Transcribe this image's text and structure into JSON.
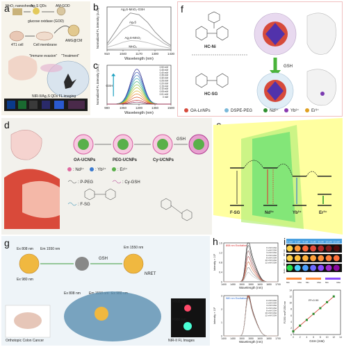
{
  "panels": {
    "a": {
      "label": "a",
      "steps": [
        "MnO₂ nanosheets",
        "Ag₂S QDs",
        "AM-GOD",
        "glucose oxidase (GOD)",
        "4T1 cell",
        "Cell membrane",
        "AMG@CM"
      ],
      "callouts": [
        "\"Immune evasion\"",
        "\"Treatment\""
      ],
      "strip_caption": "NIR-II/Ag₂S QDs FL imaging"
    },
    "b": {
      "label": "b",
      "chart_data": {
        "type": "line",
        "xlabel": "Wavelength (nm)",
        "ylabel": "Normalized FL intensity (a.u.)",
        "xlim": [
          910,
          1430
        ],
        "ylim": [
          0,
          1
        ],
        "xticks": [
          910,
          1040,
          1170,
          1300,
          1430
        ],
        "series": [
          {
            "name": "Ag₂S-MnO₂-GSH",
            "x": [
              910,
              980,
              1040,
              1100,
              1170,
              1240,
              1300,
              1370,
              1430
            ],
            "y": [
              0.14,
              0.44,
              0.7,
              0.86,
              0.82,
              0.64,
              0.42,
              0.22,
              0.1
            ]
          },
          {
            "name": "Ag₂S",
            "x": [
              910,
              980,
              1040,
              1100,
              1170,
              1240,
              1300,
              1370,
              1430
            ],
            "y": [
              0.1,
              0.3,
              0.48,
              0.58,
              0.55,
              0.44,
              0.3,
              0.16,
              0.07
            ]
          },
          {
            "name": "Ag₂S-MnO₂",
            "x": [
              910,
              980,
              1040,
              1100,
              1170,
              1240,
              1300,
              1370,
              1430
            ],
            "y": [
              0.06,
              0.12,
              0.18,
              0.22,
              0.21,
              0.17,
              0.12,
              0.07,
              0.04
            ]
          },
          {
            "name": "MnO₂",
            "x": [
              910,
              980,
              1040,
              1100,
              1170,
              1240,
              1300,
              1370,
              1430
            ],
            "y": [
              0.02,
              0.03,
              0.04,
              0.045,
              0.04,
              0.035,
              0.03,
              0.02,
              0.015
            ]
          }
        ]
      }
    },
    "c": {
      "label": "c",
      "arrow_label": "GSH",
      "chart_data": {
        "type": "line",
        "xlabel": "Wavelength (nm)",
        "ylabel": "Normalized FL intensity (a.u.)",
        "xlim": [
          900,
          1500
        ],
        "ylim": [
          0,
          1.0
        ],
        "xticks": [
          900,
          1050,
          1200,
          1350,
          1500
        ],
        "peak_x": 1180,
        "series": [
          {
            "name": "0.50 mM",
            "peak": 0.9
          },
          {
            "name": "0.45 mM",
            "peak": 0.82
          },
          {
            "name": "0.40 mM",
            "peak": 0.74
          },
          {
            "name": "0.35 mM",
            "peak": 0.66
          },
          {
            "name": "0.30 mM",
            "peak": 0.58
          },
          {
            "name": "0.25 mM",
            "peak": 0.5
          },
          {
            "name": "0.20 mM",
            "peak": 0.42
          },
          {
            "name": "0.15 mM",
            "peak": 0.34
          },
          {
            "name": "0.10 mM",
            "peak": 0.26
          },
          {
            "name": "0.05 mM",
            "peak": 0.18
          },
          {
            "name": "0.01 mM",
            "peak": 0.1
          },
          {
            "name": "0 mM",
            "peak": 0.05
          }
        ],
        "colors": [
          "#2b2b8c",
          "#3a55b0",
          "#3f7fc2",
          "#2fa3b8",
          "#3bb07a",
          "#7cbf3c",
          "#b9c230",
          "#e0b12b",
          "#e6862a",
          "#dc5a2a",
          "#c23b3b",
          "#8a2d5c"
        ]
      }
    },
    "d": {
      "label": "d",
      "stages": [
        "OA-UCNPs",
        "PEG-UCNPs",
        "Cy-UCNPs"
      ],
      "arrow_label": "GSH",
      "legend": [
        ": Nd³⁺",
        ": Yb³⁺",
        ": Er³⁺",
        ": P-PEG",
        ": Cy-GSH",
        ": F-SG"
      ]
    },
    "e": {
      "label": "e",
      "levels": [
        "F-SG",
        "Nd³⁺",
        "Yb³⁺",
        "Er³⁺"
      ]
    },
    "f": {
      "label": "f",
      "molecules": [
        "HC-Ni",
        "HC-SG"
      ],
      "arrow_label": "GSH",
      "legend": [
        "OA-LnNPs",
        "DSPE-PEG",
        "Nd³⁺",
        "Yb³⁺",
        "Er³⁺"
      ]
    },
    "g": {
      "label": "g",
      "excitations": [
        "Ex 808 nm",
        "Em 1550 nm",
        "Ex 980 nm",
        "Em 1550 nm",
        "Ex 808 nm",
        "Em 1550 nm",
        "Ex 980 nm"
      ],
      "arrow_label": "GSH",
      "nret_label": "NRET",
      "strip_labels": [
        "F808 nm",
        "F980 nm"
      ],
      "caption_left": "Orthotopic Colon Cancer",
      "caption_right": "NIR-II FL Images"
    },
    "h": {
      "label": "h",
      "top_title": "808 nm Excitation",
      "bottom_title": "980 nm Excitation",
      "chart_data": [
        {
          "type": "line",
          "xlabel": "Wavelength (nm)",
          "ylabel": "Intensity × 10³",
          "xlim": [
            1400,
            1700
          ],
          "ylim": [
            0,
            1.6
          ],
          "xticks": [
            1400,
            1450,
            1500,
            1550,
            1600,
            1650,
            1700
          ],
          "yticks": [
            0,
            0.4,
            0.8,
            1.2,
            1.6
          ],
          "series": [
            {
              "name": "0 mM GSH",
              "peak": 1.5
            },
            {
              "name": "2 mM GSH",
              "peak": 1.32
            },
            {
              "name": "4 mM GSH",
              "peak": 1.12
            },
            {
              "name": "6 mM GSH",
              "peak": 0.92
            },
            {
              "name": "8 mM GSH",
              "peak": 0.72
            },
            {
              "name": "10 mM GSH",
              "peak": 0.52
            },
            {
              "name": "12 mM GSH",
              "peak": 0.34
            }
          ]
        },
        {
          "type": "line",
          "xlabel": "Wavelength (nm)",
          "ylabel": "Intensity × 10³",
          "xlim": [
            1400,
            1700
          ],
          "ylim": [
            0,
            3
          ],
          "xticks": [
            1400,
            1450,
            1500,
            1550,
            1600,
            1650,
            1700
          ],
          "yticks": [
            0,
            1,
            2,
            3
          ],
          "series": [
            {
              "name": "0 mM GSH",
              "peak": 2.8
            },
            {
              "name": "2 mM GSH",
              "peak": 2.75
            },
            {
              "name": "4 mM GSH",
              "peak": 2.7
            },
            {
              "name": "6 mM GSH",
              "peak": 2.65
            },
            {
              "name": "8 mM GSH",
              "peak": 2.6
            },
            {
              "name": "10 mM GSH",
              "peak": 2.55
            },
            {
              "name": "12 mM GSH",
              "peak": 2.5
            }
          ]
        }
      ]
    },
    "i": {
      "label": "i",
      "columns": [
        "0 mM",
        "2 mM",
        "4 mM",
        "6 mM",
        "8 mM",
        "10 mM",
        "12 mM"
      ],
      "rows": [
        "808 nm",
        "980 nm",
        "Ratio"
      ],
      "scale_labels": [
        "Min",
        "Max",
        "Min",
        "Max",
        "Min",
        "Max"
      ],
      "chart_data": {
        "type": "scatter",
        "xlabel": "GSH (mM)",
        "ylabel": "F1550 nm/F1550 nm",
        "xlim": [
          0,
          14
        ],
        "ylim": [
          0,
          14
        ],
        "xticks": [
          0,
          2,
          4,
          6,
          8,
          10,
          12,
          14
        ],
        "yticks": [
          0,
          2,
          4,
          6,
          8,
          10,
          12,
          14
        ],
        "annotation": "R²=0.99",
        "x": [
          0,
          2,
          4,
          6,
          8,
          10,
          12
        ],
        "y": [
          1.0,
          2.8,
          4.6,
          6.5,
          8.3,
          10.2,
          12.0
        ]
      }
    }
  }
}
